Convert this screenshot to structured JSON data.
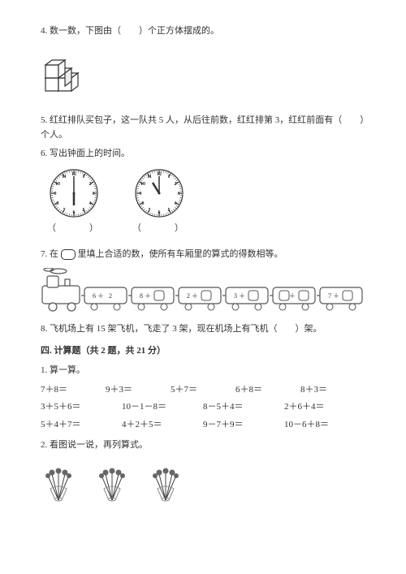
{
  "q4": {
    "text": "4. 数一数，下图由（　　）个正方体摆成的。",
    "cube_stroke": "#333333",
    "cube_fill": "#ffffff",
    "cube_shadow": "#dddddd"
  },
  "q5": {
    "text": "5. 红红排队买包子，这一队共 5 人，从后往前数，红红排第 3，红红前面有（　　）个人。"
  },
  "q6": {
    "text": "6. 写出钟面上的时间。",
    "answer_blank": "（　　　）",
    "clock1": {
      "hour_angle": 180,
      "minute_angle": 0
    },
    "clock2": {
      "hour_angle": 330,
      "minute_angle": 0
    },
    "clock_stroke": "#333333",
    "clock_fill": "#ffffff"
  },
  "q7": {
    "text_prefix": "7. 在",
    "text_suffix": "里填上合适的数，使所有车厢里的算式的得数相等。",
    "carriages": [
      "6＋2",
      "8＋",
      "2＋",
      "3＋",
      "＋",
      "7＋"
    ],
    "train_stroke": "#555555",
    "train_fill": "#ffffff"
  },
  "q8": {
    "text": "8. 飞机场上有 15 架飞机，飞走了 3 架，现在机场上有飞机（　　）架。"
  },
  "section4": {
    "header": "四. 计算题（共 2 题，共 21 分）",
    "sub1": "1. 算一算。",
    "row1": [
      "7＋8＝",
      "9＋3＝",
      "5＋7＝",
      "6＋8＝",
      "8＋3＝"
    ],
    "row2": [
      "3＋5＋6＝",
      "10－1－8＝",
      "8－5＋4＝",
      "2＋6＋4＝"
    ],
    "row3": [
      "5＋4＋7＝",
      "4＋2＋5＝",
      "9－7＋9＝",
      "10－6＋8＝"
    ],
    "sub2": "2. 看图说一说，再列算式。"
  },
  "bouquet": {
    "stem_color": "#444444",
    "flower_color": "#666666",
    "wrap_color": "#888888"
  }
}
